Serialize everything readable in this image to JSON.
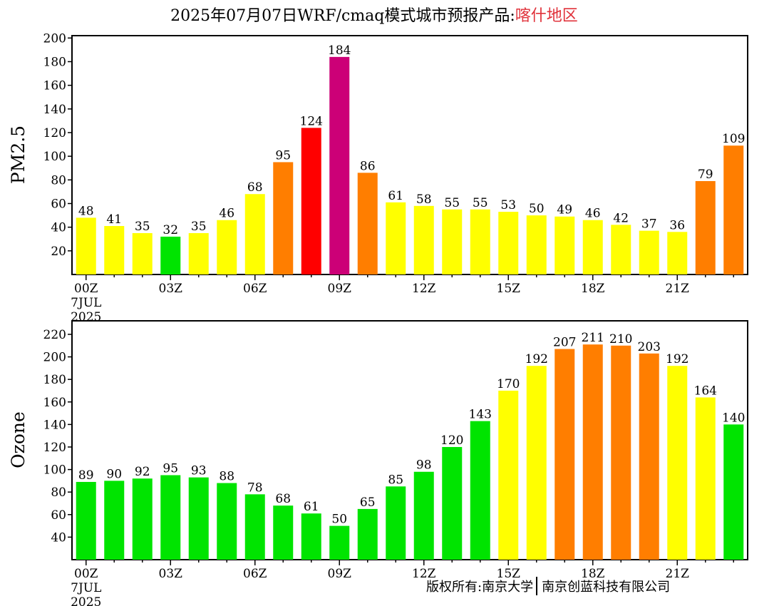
{
  "title": {
    "main": "2025年07月07日WRF/cmaq模式城市预报产品:",
    "region": "喀什地区"
  },
  "footer": {
    "left": "版权所有:南京大学",
    "right": "南京创蓝科技有限公司"
  },
  "colors": {
    "green": "#00e400",
    "yellow": "#ffff00",
    "orange": "#ff7e00",
    "red": "#ff0000",
    "purple": "#cc0077"
  },
  "chart_data": [
    {
      "type": "bar",
      "ylabel": "PM2.5",
      "ylim": [
        0,
        202
      ],
      "yticks": [
        20,
        40,
        60,
        80,
        100,
        120,
        140,
        160,
        180,
        200
      ],
      "x_tick_labels": [
        "00Z",
        "03Z",
        "06Z",
        "09Z",
        "12Z",
        "15Z",
        "18Z",
        "21Z"
      ],
      "x_first_sublabels": [
        "7JUL",
        "2025"
      ],
      "values": [
        48,
        41,
        35,
        32,
        35,
        46,
        68,
        95,
        124,
        184,
        86,
        61,
        58,
        55,
        55,
        53,
        50,
        49,
        46,
        42,
        37,
        36,
        79,
        109
      ],
      "bar_colors": [
        "yellow",
        "yellow",
        "yellow",
        "green",
        "yellow",
        "yellow",
        "yellow",
        "orange",
        "red",
        "purple",
        "orange",
        "yellow",
        "yellow",
        "yellow",
        "yellow",
        "yellow",
        "yellow",
        "yellow",
        "yellow",
        "yellow",
        "yellow",
        "yellow",
        "orange",
        "orange"
      ]
    },
    {
      "type": "bar",
      "ylabel": "Ozone",
      "ylim": [
        20,
        232
      ],
      "yticks": [
        40,
        60,
        80,
        100,
        120,
        140,
        160,
        180,
        200,
        220
      ],
      "x_tick_labels": [
        "00Z",
        "03Z",
        "06Z",
        "09Z",
        "12Z",
        "15Z",
        "18Z",
        "21Z"
      ],
      "x_first_sublabels": [
        "7JUL",
        "2025"
      ],
      "values": [
        89,
        90,
        92,
        95,
        93,
        88,
        78,
        68,
        61,
        50,
        65,
        85,
        98,
        120,
        143,
        170,
        192,
        207,
        211,
        210,
        203,
        192,
        164,
        140
      ],
      "bar_colors": [
        "green",
        "green",
        "green",
        "green",
        "green",
        "green",
        "green",
        "green",
        "green",
        "green",
        "green",
        "green",
        "green",
        "green",
        "green",
        "yellow",
        "yellow",
        "orange",
        "orange",
        "orange",
        "orange",
        "yellow",
        "yellow",
        "green"
      ]
    }
  ]
}
